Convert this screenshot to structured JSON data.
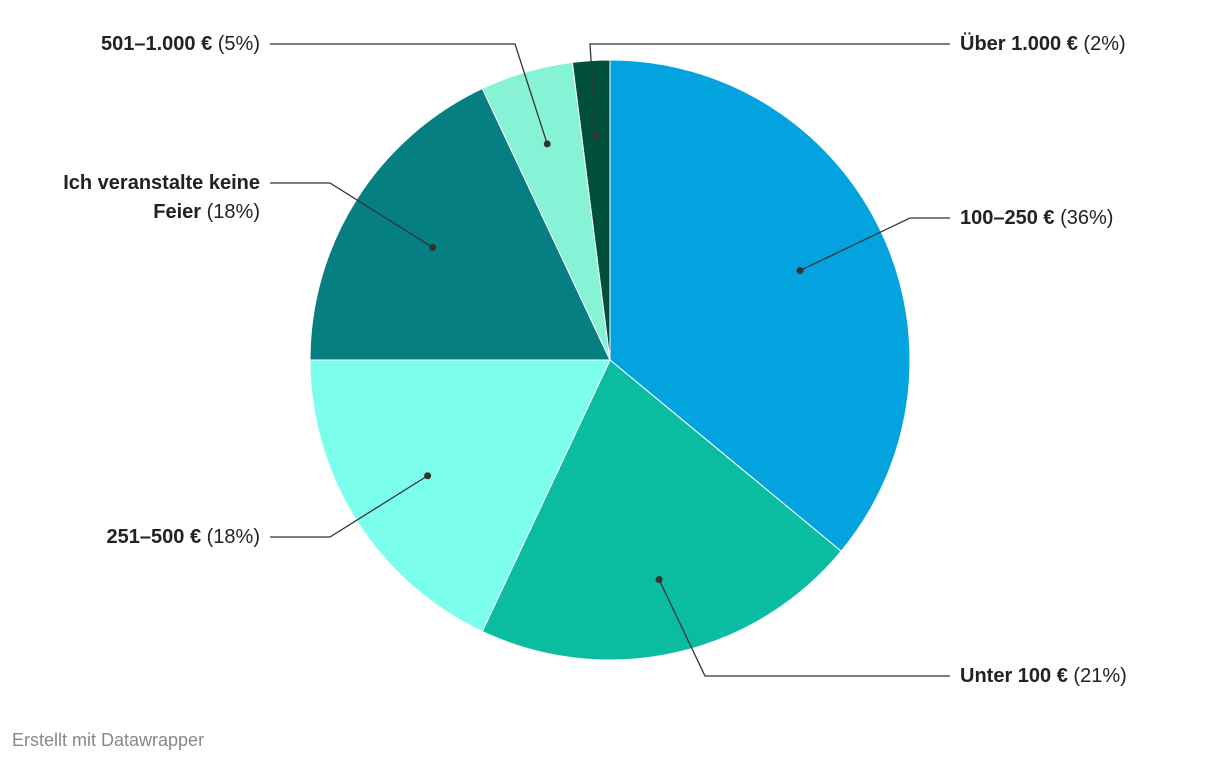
{
  "chart_data": {
    "type": "pie",
    "categories": [
      "100–250 €",
      "Unter 100 €",
      "251–500 €",
      "Ich veranstalte keine Feier",
      "501–1.000 €",
      "Über 1.000 €"
    ],
    "values": [
      36,
      21,
      18,
      18,
      5,
      2
    ],
    "value_labels": [
      "(36%)",
      "(21%)",
      "(18%)",
      "(18%)",
      "(5%)",
      "(2%)"
    ],
    "colors": [
      "#03a3df",
      "#0abda0",
      "#7cfeec",
      "#067f82",
      "#86f2d6",
      "#00503c"
    ],
    "footer": "Erstellt mit Datawrapper"
  }
}
